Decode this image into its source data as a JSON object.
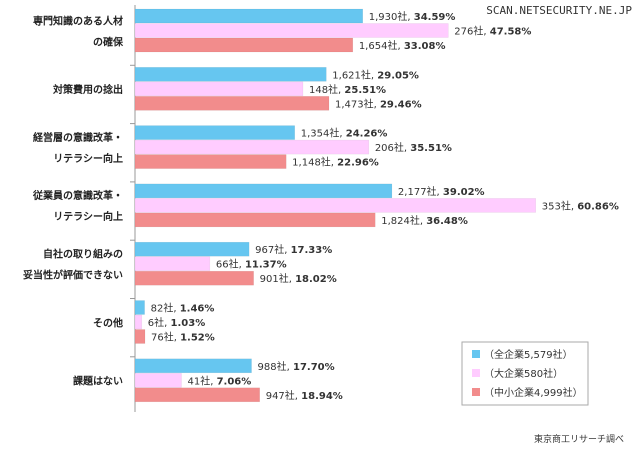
{
  "watermark": "SCAN.NETSECURITY.NE.JP",
  "source": "東京商工リサーチ調べ",
  "colors": {
    "all": "#66c6f0",
    "large": "#ffccff",
    "sme": "#f28c8c"
  },
  "chart_data": {
    "type": "bar",
    "orientation": "horizontal",
    "title": "",
    "xlabel": "",
    "ylabel": "",
    "xlim": [
      0,
      65
    ],
    "categories": [
      {
        "lines": [
          "専門知識のある人材",
          "の確保"
        ]
      },
      {
        "lines": [
          "対策費用の捻出"
        ]
      },
      {
        "lines": [
          "経営層の意識改革・",
          "リテラシー向上"
        ]
      },
      {
        "lines": [
          "従業員の意識改革・",
          "リテラシー向上"
        ]
      },
      {
        "lines": [
          "自社の取り組みの",
          "妥当性が評価できない"
        ]
      },
      {
        "lines": [
          "その他"
        ]
      },
      {
        "lines": [
          "課題はない"
        ]
      }
    ],
    "series": [
      {
        "name": "（全企業5,579社）",
        "color_key": "all",
        "counts": [
          "1,930社",
          "1,621社",
          "1,354社",
          "2,177社",
          "967社",
          "82社",
          "988社"
        ],
        "percent_labels": [
          "34.59%",
          "29.05%",
          "24.26%",
          "39.02%",
          "17.33%",
          "1.46%",
          "17.70%"
        ],
        "values": [
          34.59,
          29.05,
          24.26,
          39.02,
          17.33,
          1.46,
          17.7
        ]
      },
      {
        "name": "（大企業580社）",
        "color_key": "large",
        "counts": [
          "276社",
          "148社",
          "206社",
          "353社",
          "66社",
          "6社",
          "41社"
        ],
        "percent_labels": [
          "47.58%",
          "25.51%",
          "35.51%",
          "60.86%",
          "11.37%",
          "1.03%",
          "7.06%"
        ],
        "values": [
          47.58,
          25.51,
          35.51,
          60.86,
          11.37,
          1.03,
          7.06
        ]
      },
      {
        "name": "（中小企業4,999社）",
        "color_key": "sme",
        "counts": [
          "1,654社",
          "1,473社",
          "1,148社",
          "1,824社",
          "901社",
          "76社",
          "947社"
        ],
        "percent_labels": [
          "33.08%",
          "29.46%",
          "22.96%",
          "36.48%",
          "18.02%",
          "1.52%",
          "18.94%"
        ],
        "values": [
          33.08,
          29.46,
          22.96,
          36.48,
          18.02,
          1.52,
          18.94
        ]
      }
    ],
    "legend": "bottom-right"
  }
}
